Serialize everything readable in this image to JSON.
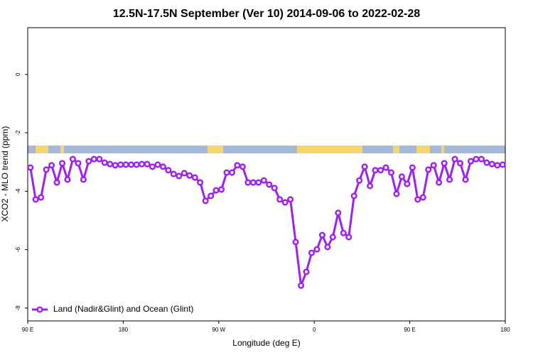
{
  "chart_data": {
    "type": "line",
    "title": "12.5N-17.5N September (Ver 10)   2014-09-06 to 2022-02-28",
    "xlabel": "Longitude (deg E)",
    "ylabel": "XCO2 - MLO trend (ppm)",
    "xlim": [
      90,
      540
    ],
    "ylim": [
      -8.44,
      1.6
    ],
    "xticks": [
      {
        "value": 90,
        "label": "90 E"
      },
      180,
      {
        "value": 270,
        "label": "90 W"
      },
      {
        "value": 360,
        "label": "0"
      },
      {
        "value": 450,
        "label": "90 E"
      },
      {
        "value": 540,
        "label": "180"
      }
    ],
    "yticks": [
      -8,
      -6,
      -4,
      -2,
      0
    ],
    "legend": "bottom-left",
    "x": [
      92.5,
      97.5,
      102.5,
      107.5,
      112.5,
      117.5,
      122.5,
      127.5,
      132.5,
      137.5,
      142.5,
      147.5,
      152.5,
      157.5,
      162.5,
      167.5,
      172.5,
      177.5,
      182.5,
      187.5,
      192.5,
      197.5,
      202.5,
      207.5,
      212.5,
      217.5,
      222.5,
      227.5,
      232.5,
      237.5,
      242.5,
      247.5,
      252.5,
      257.5,
      262.5,
      267.5,
      272.5,
      277.5,
      282.5,
      287.5,
      292.5,
      297.5,
      302.5,
      307.5,
      312.5,
      317.5,
      322.5,
      327.5,
      332.5,
      337.5,
      342.5,
      347.5,
      352.5,
      357.5,
      362.5,
      367.5,
      372.5,
      377.5,
      382.5,
      387.5,
      392.5,
      397.5,
      402.5,
      407.5,
      412.5,
      417.5,
      422.5,
      427.5,
      432.5,
      437.5,
      442.5,
      447.5,
      452.5,
      457.5,
      462.5,
      467.5,
      472.5,
      477.5,
      482.5,
      487.5,
      492.5,
      497.5,
      502.5,
      507.5,
      512.5,
      517.5,
      522.5,
      527.5,
      532.5,
      537.5
    ],
    "series": [
      {
        "name": "Land (Nadir&Glint) and Ocean (Glint)",
        "color": "#a020f0",
        "values": [
          -3.19,
          -4.28,
          -4.21,
          -3.26,
          -3.11,
          -3.7,
          -3.04,
          -3.6,
          -2.9,
          -3.04,
          -3.6,
          -2.97,
          -2.9,
          -2.9,
          -3.02,
          -3.07,
          -3.11,
          -3.09,
          -3.09,
          -3.09,
          -3.09,
          -3.07,
          -3.07,
          -3.16,
          -3.09,
          -3.16,
          -3.28,
          -3.41,
          -3.48,
          -3.38,
          -3.46,
          -3.53,
          -3.7,
          -4.33,
          -4.16,
          -3.97,
          -3.94,
          -3.36,
          -3.36,
          -3.11,
          -3.16,
          -3.7,
          -3.7,
          -3.7,
          -3.63,
          -3.77,
          -3.89,
          -4.28,
          -4.38,
          -4.28,
          -5.74,
          -7.23,
          -6.76,
          -6.11,
          -5.99,
          -5.5,
          -5.91,
          -5.57,
          -4.74,
          -5.43,
          -5.57,
          -4.16,
          -3.63,
          -3.16,
          -3.82,
          -3.28,
          -3.28,
          -3.19,
          -3.36,
          -4.09,
          -3.5,
          -3.75,
          -3.19,
          -4.28,
          -4.21,
          -3.26,
          -3.11,
          -3.7,
          -3.04,
          -3.6,
          -2.9,
          -3.04,
          -3.6,
          -2.97,
          -2.9,
          -2.9,
          -3.02,
          -3.07,
          -3.11,
          -3.09
        ]
      }
    ]
  }
}
